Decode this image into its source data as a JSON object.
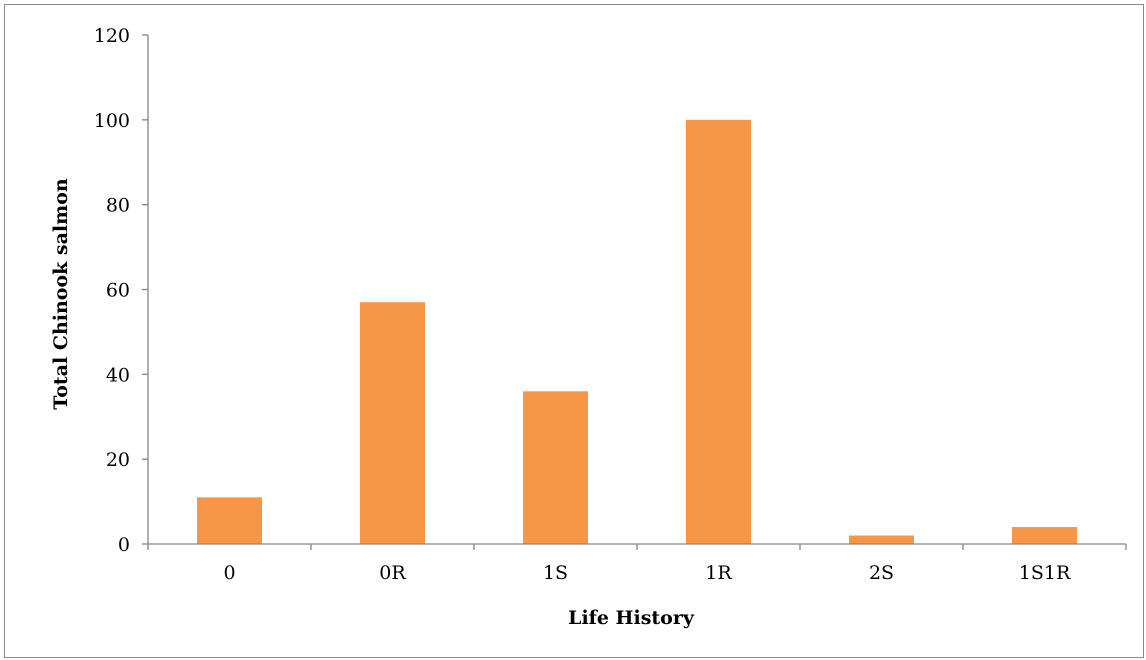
{
  "chart_data": {
    "type": "bar",
    "title": "",
    "xlabel": "Life History",
    "ylabel": "Total Chinook salmon",
    "categories": [
      "0",
      "0R",
      "1S",
      "1R",
      "2S",
      "1S1R"
    ],
    "values": [
      11,
      57,
      36,
      100,
      2,
      4
    ],
    "ylim": [
      0,
      120
    ],
    "yticks": [
      "0",
      "20",
      "40",
      "60",
      "80",
      "100",
      "120"
    ],
    "grid": false,
    "legend": "none",
    "bar_color": "#F79646",
    "axis_color": "#868686"
  }
}
